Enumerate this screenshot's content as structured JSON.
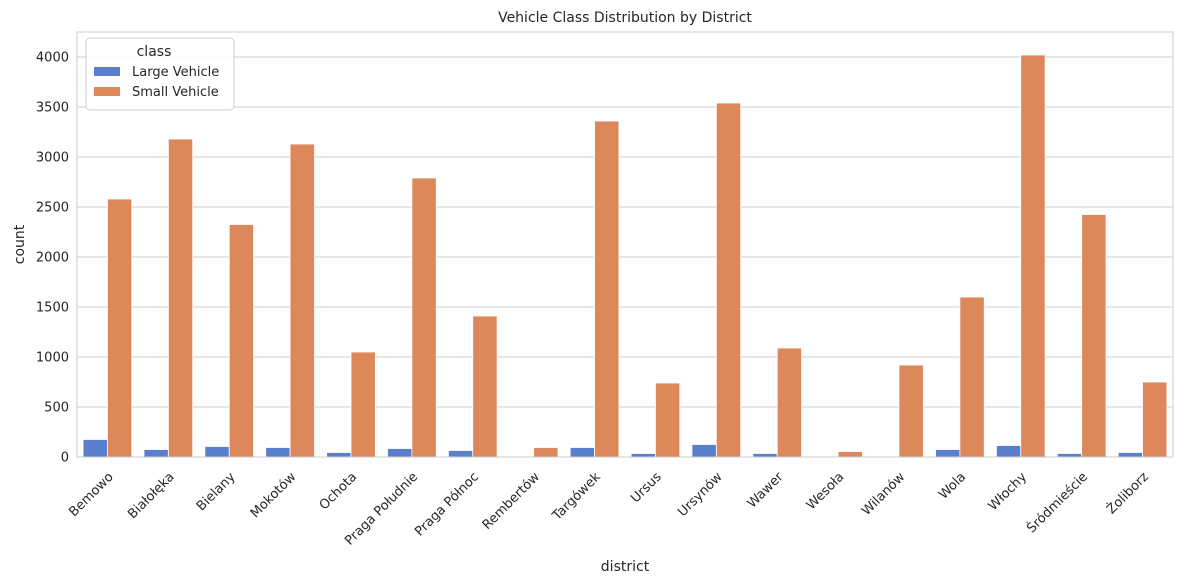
{
  "chart_data": {
    "type": "bar",
    "title": "Vehicle Class Distribution by District",
    "xlabel": "district",
    "ylabel": "count",
    "ylim": [
      0,
      4250
    ],
    "yticks": [
      0,
      500,
      1000,
      1500,
      2000,
      2500,
      3000,
      3500,
      4000
    ],
    "grid": "y",
    "legend": {
      "title": "class",
      "placement": "top-left"
    },
    "categories": [
      "Bemowo",
      "Białołęka",
      "Bielany",
      "Mokotów",
      "Ochota",
      "Praga Południe",
      "Praga Północ",
      "Rembertów",
      "Targówek",
      "Ursus",
      "Ursynów",
      "Wawer",
      "Wesoła",
      "Wilanów",
      "Wola",
      "Włochy",
      "Śródmieście",
      "Żoliborz"
    ],
    "series": [
      {
        "name": "Large Vehicle",
        "color": "#5a7fcf",
        "values": [
          175,
          75,
          105,
          95,
          45,
          85,
          65,
          5,
          95,
          35,
          125,
          35,
          5,
          8,
          75,
          115,
          35,
          45
        ]
      },
      {
        "name": "Small Vehicle",
        "color": "#dc885b",
        "values": [
          2580,
          3180,
          2325,
          3130,
          1050,
          2790,
          1410,
          95,
          3360,
          740,
          3540,
          1090,
          55,
          920,
          1600,
          4020,
          2425,
          750
        ]
      }
    ]
  }
}
